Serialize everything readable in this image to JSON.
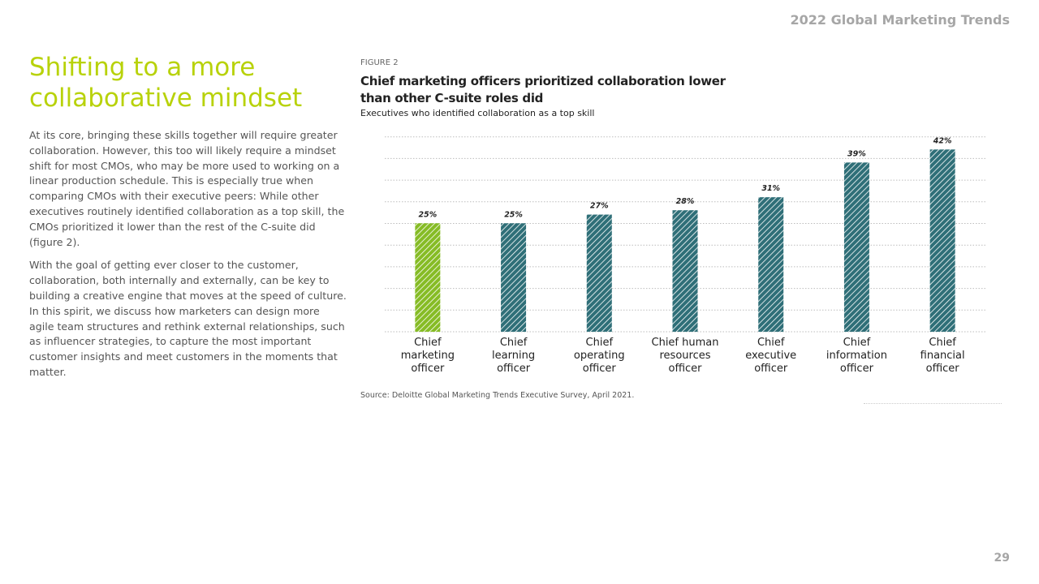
{
  "header": {
    "title": "2022 Global Marketing Trends"
  },
  "page_number": "29",
  "left": {
    "title": "Shifting to a more collaborative mindset",
    "paragraphs": [
      "At its core, bringing these skills together will require greater collaboration. However, this too will likely require a mindset shift for most CMOs, who may be more used to working on a linear production schedule. This is especially true when comparing CMOs with their executive peers: While other executives routinely identified collaboration as a top skill, the CMOs prioritized it lower than the rest of the C-suite did (figure 2).",
      "With the goal of getting ever closer to the customer, collaboration, both internally and externally, can be key to building a creative engine that moves at the speed of culture. In this spirit, we discuss how marketers can design more agile team structures and rethink external relationships, such as influencer strategies, to capture the most important customer insights and meet customers in the moments that matter."
    ]
  },
  "figure": {
    "label": "FIGURE 2",
    "source": "Source: Deloitte Global Marketing Trends Executive Survey, April 2021."
  },
  "chart_data": {
    "type": "bar",
    "title": "Chief marketing officers prioritized collaboration lower than other C-suite roles did",
    "subtitle": "Executives who identified collaboration as a top skill",
    "categories": [
      [
        "Chief",
        "marketing",
        "officer"
      ],
      [
        "Chief",
        "learning",
        "officer"
      ],
      [
        "Chief",
        "operating",
        "officer"
      ],
      [
        "Chief  human",
        "resources",
        "officer"
      ],
      [
        "Chief",
        "executive",
        "officer"
      ],
      [
        "Chief",
        "information",
        "officer"
      ],
      [
        "Chief",
        "financial",
        "officer"
      ]
    ],
    "values": [
      25,
      25,
      27,
      28,
      31,
      39,
      42
    ],
    "value_labels": [
      "25%",
      "25%",
      "27%",
      "28%",
      "31%",
      "39%",
      "42%"
    ],
    "ylim": [
      0,
      45
    ],
    "grid": true,
    "highlight_index": 0,
    "colors": {
      "highlight": "#86bc25",
      "bar": "#2f6f78"
    }
  }
}
